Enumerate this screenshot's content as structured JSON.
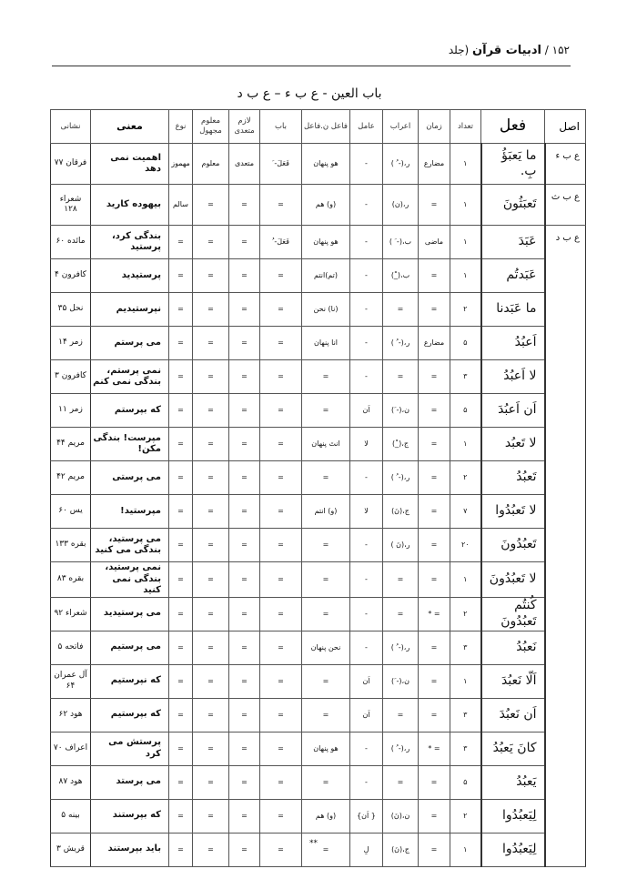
{
  "page_header": {
    "page_number": "١۵٢",
    "separator": "/",
    "book_title": "ادبیات قرآن",
    "volume": "(جلد"
  },
  "title": "باب العین -  ع ب ء  – ع ب د",
  "columns": {
    "asl": "اصل",
    "fel": "فعل",
    "count": "تعداد",
    "tense": "زمان",
    "erab": "اعراب",
    "amel": "عامل",
    "fael": "فاعل ن.فاعل",
    "bab": "باب",
    "lazem": "لازم متعدی",
    "maloom": "معلوم مجهول",
    "type": "نوع",
    "meaning": "معنی",
    "ref": "نشانی"
  },
  "roots": [
    {
      "label": "ع ب ء",
      "span": 1
    },
    {
      "label": "ع ب ث",
      "span": 1
    },
    {
      "label": "ع ب د",
      "span": 19
    }
  ],
  "rows": [
    [
      "ما یَعبَؤُ بِ.",
      "١",
      "مضارع",
      "ر،(- ُ )",
      "-",
      "هو پنهان",
      "فَعَلَ- َ",
      "متعدی",
      "معلوم",
      "مهموز",
      "اهمیت نمی دهد",
      "فرقان ٧٧"
    ],
    [
      "تَعبَثُونَ",
      "١",
      "=",
      "ر،(ن)",
      "-",
      "(و) هم",
      "=",
      "=",
      "=",
      "سالم",
      "بیهوده کارید",
      "شعراء ١٢٨"
    ],
    [
      "عَبَدَ",
      "١",
      "ماضی",
      "ب،(- َ )",
      "-",
      "هو پنهان",
      "فَعَلَ- ُ",
      "=",
      "=",
      "=",
      "بندگی کرد، پرستید",
      "مائده ۶٠"
    ],
    [
      "عَبَدتُم",
      "١",
      "=",
      "ب،(_ْ)",
      "-",
      "(تم)انتم",
      "=",
      "=",
      "=",
      "=",
      "پرستیدید",
      "کافرون ۴"
    ],
    [
      "ما عَبَدنا",
      "٢",
      "=",
      "=",
      "-",
      "(نا) نحن",
      "=",
      "=",
      "=",
      "=",
      "نپرستیدیم",
      "نحل ٣۵"
    ],
    [
      "اَعبُدُ",
      "۵",
      "مضارع",
      "ر،(- ُ )",
      "-",
      "انا پنهان",
      "=",
      "=",
      "=",
      "=",
      "می پرستم",
      "زمر ١۴"
    ],
    [
      "لا اَعبُدُ",
      "٣",
      "=",
      "=",
      "-",
      "=",
      "=",
      "=",
      "=",
      "=",
      "نمی پرستم، بندگی نمی کنم",
      "کافرون ٣"
    ],
    [
      "اَن اَعبُدَ",
      "۵",
      "=",
      "ن،(- َ)",
      "اَن",
      "=",
      "=",
      "=",
      "=",
      "=",
      "که بپرستم",
      "زمر ١١"
    ],
    [
      "لا تَعبُد",
      "١",
      "=",
      "ج،(_ْ)",
      "لا",
      "انتَ پنهان",
      "=",
      "=",
      "=",
      "=",
      "مپرست! بندگی مکن!",
      "مریم ۴۴"
    ],
    [
      "تَعبُدُ",
      "٢",
      "=",
      "ر،(- ُ )",
      "-",
      "=",
      "=",
      "=",
      "=",
      "=",
      "می پرستی",
      "مریم ۴٢"
    ],
    [
      "لا تَعبُدُوا",
      "٧",
      "=",
      "ج،(نَ)",
      "لا",
      "(و) انتم",
      "=",
      "=",
      "=",
      "=",
      "مپرستید!",
      "یس ۶٠"
    ],
    [
      "تَعبُدُونَ",
      "٢٠",
      "=",
      "ر،(نَ )",
      "-",
      "=",
      "=",
      "=",
      "=",
      "=",
      "می پرستید، بندگی می کنید",
      "بقره ١٣٣"
    ],
    [
      "لا تَعبُدُونَ",
      "١",
      "=",
      "=",
      "-",
      "=",
      "=",
      "=",
      "=",
      "=",
      "نمی پرستید، بندگی نمی کنید",
      "بقره ٨٣"
    ],
    [
      "کُنتُم تَعبُدُونَ",
      "٢",
      "= *",
      "=",
      "-",
      "=",
      "=",
      "=",
      "=",
      "=",
      "می پرستیدید",
      "شعراء ٩٢"
    ],
    [
      "نَعبُدُ",
      "٣",
      "=",
      "ر،(- ُ )",
      "-",
      "نحن پنهان",
      "=",
      "=",
      "=",
      "=",
      "می پرستیم",
      "فاتحه ۵"
    ],
    [
      "اَلّا نَعبُدَ",
      "١",
      "=",
      "ن،(- َ)",
      "اَن",
      "=",
      "=",
      "=",
      "=",
      "=",
      "که نپرستیم",
      "آل عمران ۶۴"
    ],
    [
      "اَن نَعبُدَ",
      "٣",
      "=",
      "=",
      "اَن",
      "=",
      "=",
      "=",
      "=",
      "=",
      "که بپرستیم",
      "هود ۶٢"
    ],
    [
      "کانَ یَعبُدُ",
      "٣",
      "= *",
      "ر،(- ُ )",
      "-",
      "هو پنهان",
      "=",
      "=",
      "=",
      "=",
      "پرستش می کرد",
      "اعراف ٧٠"
    ],
    [
      "یَعبُدُ",
      "۵",
      "=",
      "=",
      "-",
      "=",
      "=",
      "=",
      "=",
      "=",
      "می پرستد",
      "هود ٨٧"
    ],
    [
      "لِیَعبُدُوا",
      "٢",
      "=",
      "ن،(نَ)",
      "{ اَن}",
      "(و) هم",
      "=",
      "=",
      "=",
      "=",
      "که بپرستند",
      "بینه ۵"
    ],
    [
      "لِیَعبُدُوا",
      "١",
      "=",
      "ج،(نَ)",
      "لِ",
      "=",
      "=",
      "=",
      "=",
      "=",
      "باید بپرستند",
      "قریش ٣"
    ]
  ],
  "footer": "**"
}
